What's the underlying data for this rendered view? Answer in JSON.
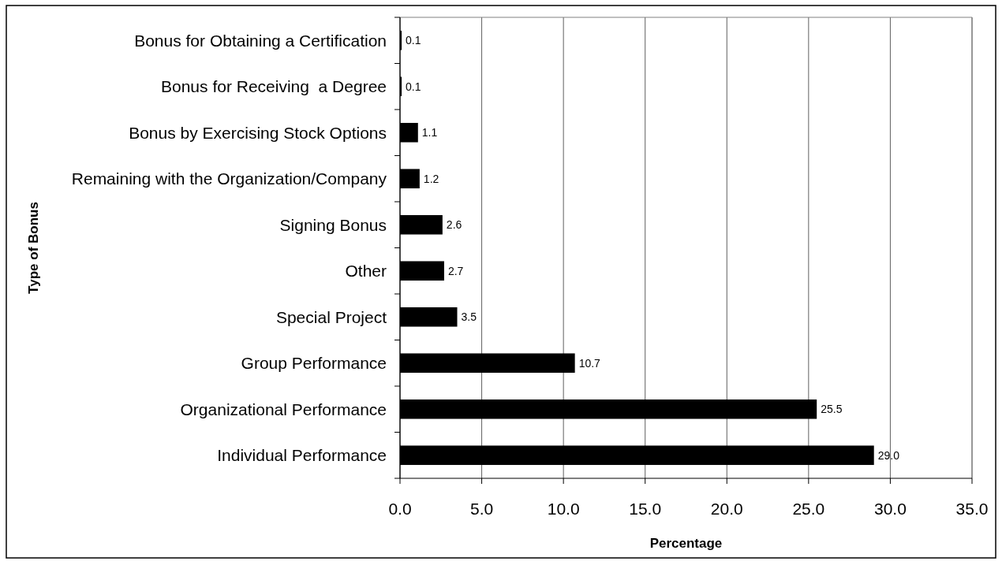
{
  "chart_data": {
    "type": "bar",
    "orientation": "horizontal",
    "categories": [
      "Bonus for Obtaining a Certification",
      "Bonus for Receiving  a Degree",
      "Bonus by Exercising Stock Options",
      "Remaining with the Organization/Company",
      "Signing Bonus",
      "Other",
      "Special Project",
      "Group Performance",
      "Organizational Performance",
      "Individual Performance"
    ],
    "values": [
      0.1,
      0.1,
      1.1,
      1.2,
      2.6,
      2.7,
      3.5,
      10.7,
      25.5,
      29.0
    ],
    "value_labels": [
      "0.1",
      "0.1",
      "1.1",
      "1.2",
      "2.6",
      "2.7",
      "3.5",
      "10.7",
      "25.5",
      "29.0"
    ],
    "color": "#000000",
    "xlabel": "Percentage",
    "ylabel": "Type of Bonus",
    "xlim": [
      0,
      35
    ],
    "xticks": [
      {
        "value": 0,
        "label": "0.0"
      },
      {
        "value": 5,
        "label": "5.0"
      },
      {
        "value": 10,
        "label": "10.0"
      },
      {
        "value": 15,
        "label": "15.0"
      },
      {
        "value": 20,
        "label": "20.0"
      },
      {
        "value": 25,
        "label": "25.0"
      },
      {
        "value": 30,
        "label": "30.0"
      },
      {
        "value": 35,
        "label": "35.0"
      }
    ],
    "grid": "x"
  }
}
